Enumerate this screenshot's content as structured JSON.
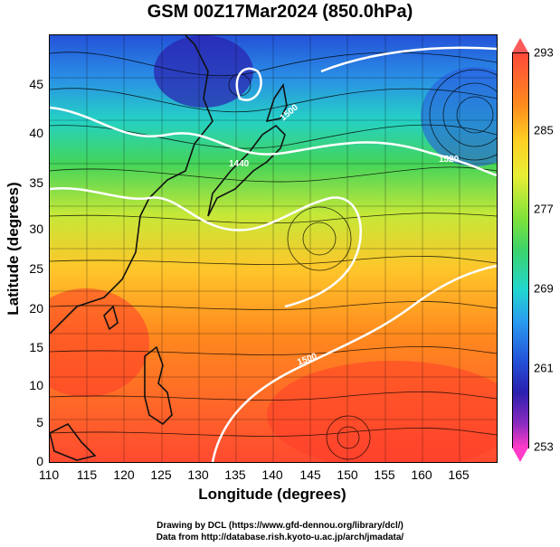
{
  "title": "GSM 00Z17Mar2024 (850.0hPa)",
  "x_axis": {
    "label": "Longitude (degrees)",
    "ticks": [
      "110",
      "115",
      "120",
      "125",
      "130",
      "135",
      "140",
      "145",
      "150",
      "155",
      "160",
      "165"
    ]
  },
  "y_axis": {
    "label": "Latitude  (degrees)",
    "ticks": [
      "0",
      "5",
      "10",
      "15",
      "20",
      "25",
      "30",
      "35",
      "40",
      "45"
    ]
  },
  "map": {
    "lon_range": [
      110,
      170
    ],
    "lat_range": [
      0,
      50
    ],
    "field": "temperature with streamlines and contours",
    "contour_labels": [
      "1440",
      "1500",
      "1520",
      "1500"
    ]
  },
  "colorbar": {
    "ticks": [
      "293",
      "285",
      "277",
      "269",
      "261",
      "253"
    ],
    "range": [
      253,
      293
    ],
    "colors": {
      "warm": "#ff4a3a",
      "mid": "#3bd36c",
      "cold": "#2452d8",
      "extreme_cold": "#ff3cc8"
    }
  },
  "credits": {
    "line1": "Drawing by DCL (https://www.gfd-dennou.org/library/dcl/)",
    "line2": "Data from http://database.rish.kyoto-u.ac.jp/arch/jmadata/"
  }
}
